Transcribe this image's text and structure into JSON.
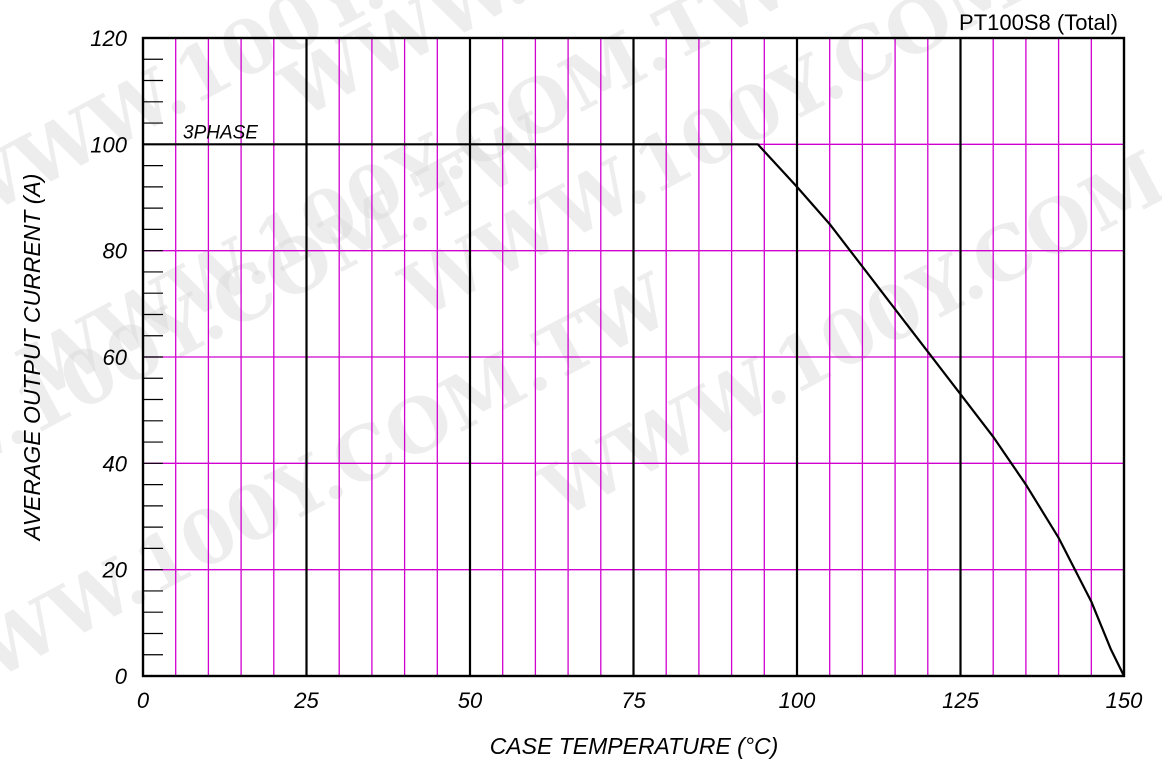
{
  "watermark_text": "WWW.100Y.COM.TW",
  "chart_data": {
    "type": "line",
    "title": "PT100S8 (Total)",
    "xlabel": "CASE TEMPERATURE (°C)",
    "ylabel": "AVERAGE OUTPUT CURRENT (A)",
    "xlim": [
      0,
      150
    ],
    "ylim": [
      0,
      120
    ],
    "x_ticks": [
      0,
      25,
      50,
      75,
      100,
      125,
      150
    ],
    "x_tick_labels": [
      "0",
      "25",
      "50",
      "75",
      "100",
      "125",
      "150"
    ],
    "y_ticks": [
      0,
      20,
      40,
      60,
      80,
      100,
      120
    ],
    "y_tick_labels": [
      "0",
      "20",
      "40",
      "60",
      "80",
      "100",
      "120"
    ],
    "x_minor_step": 5,
    "y_minor_step": 20,
    "y_small_tick_step": 4,
    "grid": true,
    "colors": {
      "major_grid": "#000000",
      "minor_grid": "#d000d0",
      "line": "#000000"
    },
    "series": [
      {
        "name": "3PHASE",
        "x": [
          0,
          94,
          100,
          105,
          110,
          115,
          120,
          125,
          130,
          135,
          140,
          145,
          148,
          150
        ],
        "y": [
          100,
          100,
          92,
          85,
          77,
          69,
          61,
          53,
          45,
          36,
          26,
          14,
          5,
          0
        ]
      }
    ]
  }
}
